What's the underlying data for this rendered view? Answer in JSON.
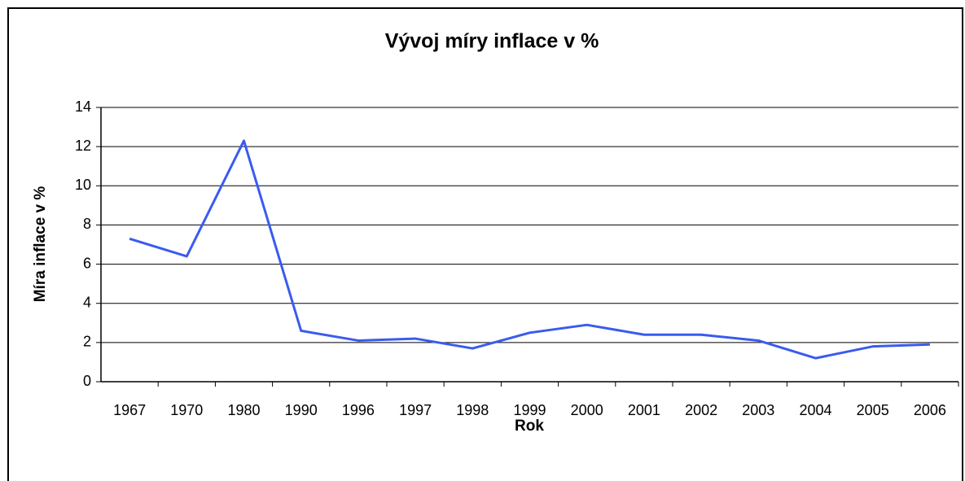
{
  "chart_data": {
    "type": "line",
    "title": "Vývoj míry inflace v %",
    "xlabel": "Rok",
    "ylabel": "Míra inflace v %",
    "categories": [
      "1967",
      "1970",
      "1980",
      "1990",
      "1996",
      "1997",
      "1998",
      "1999",
      "2000",
      "2001",
      "2002",
      "2003",
      "2004",
      "2005",
      "2006"
    ],
    "series": [
      {
        "color": "#3a5bef",
        "values": [
          7.3,
          6.4,
          12.3,
          2.6,
          2.1,
          2.2,
          1.7,
          2.5,
          2.9,
          2.4,
          2.4,
          2.1,
          1.2,
          1.8,
          1.9
        ]
      }
    ],
    "ylim": [
      0,
      14
    ],
    "yticks": [
      0,
      2,
      4,
      6,
      8,
      10,
      12,
      14
    ],
    "grid": true
  }
}
